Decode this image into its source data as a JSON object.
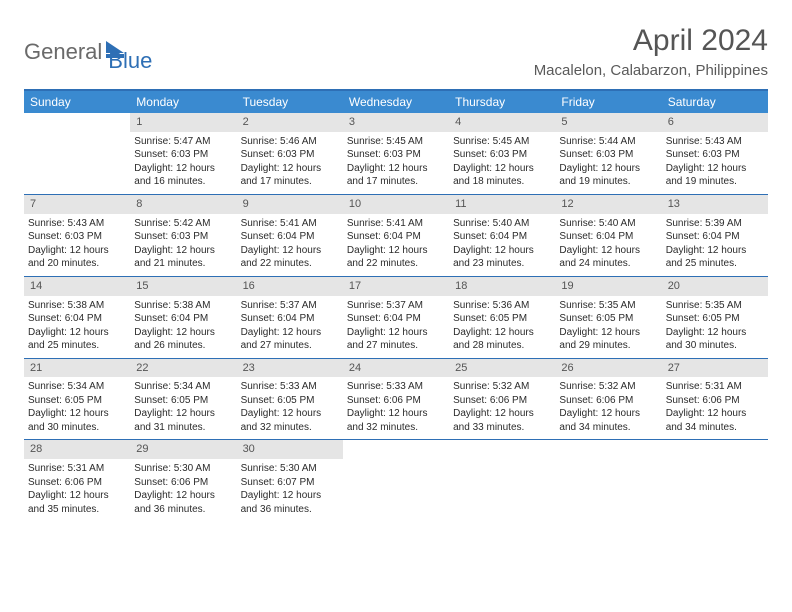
{
  "brand": {
    "part1": "General",
    "part2": "Blue"
  },
  "title": "April 2024",
  "location": "Macalelon, Calabarzon, Philippines",
  "colors": {
    "header_bg": "#3a8ad0",
    "border": "#2e6fb5",
    "daynum_bg": "#e5e5e5",
    "text": "#2b2b2b",
    "muted": "#555555"
  },
  "weekdays": [
    "Sunday",
    "Monday",
    "Tuesday",
    "Wednesday",
    "Thursday",
    "Friday",
    "Saturday"
  ],
  "weeks": [
    [
      {
        "n": "",
        "sunrise": "",
        "sunset": "",
        "daylight": ""
      },
      {
        "n": "1",
        "sunrise": "Sunrise: 5:47 AM",
        "sunset": "Sunset: 6:03 PM",
        "daylight": "Daylight: 12 hours and 16 minutes."
      },
      {
        "n": "2",
        "sunrise": "Sunrise: 5:46 AM",
        "sunset": "Sunset: 6:03 PM",
        "daylight": "Daylight: 12 hours and 17 minutes."
      },
      {
        "n": "3",
        "sunrise": "Sunrise: 5:45 AM",
        "sunset": "Sunset: 6:03 PM",
        "daylight": "Daylight: 12 hours and 17 minutes."
      },
      {
        "n": "4",
        "sunrise": "Sunrise: 5:45 AM",
        "sunset": "Sunset: 6:03 PM",
        "daylight": "Daylight: 12 hours and 18 minutes."
      },
      {
        "n": "5",
        "sunrise": "Sunrise: 5:44 AM",
        "sunset": "Sunset: 6:03 PM",
        "daylight": "Daylight: 12 hours and 19 minutes."
      },
      {
        "n": "6",
        "sunrise": "Sunrise: 5:43 AM",
        "sunset": "Sunset: 6:03 PM",
        "daylight": "Daylight: 12 hours and 19 minutes."
      }
    ],
    [
      {
        "n": "7",
        "sunrise": "Sunrise: 5:43 AM",
        "sunset": "Sunset: 6:03 PM",
        "daylight": "Daylight: 12 hours and 20 minutes."
      },
      {
        "n": "8",
        "sunrise": "Sunrise: 5:42 AM",
        "sunset": "Sunset: 6:03 PM",
        "daylight": "Daylight: 12 hours and 21 minutes."
      },
      {
        "n": "9",
        "sunrise": "Sunrise: 5:41 AM",
        "sunset": "Sunset: 6:04 PM",
        "daylight": "Daylight: 12 hours and 22 minutes."
      },
      {
        "n": "10",
        "sunrise": "Sunrise: 5:41 AM",
        "sunset": "Sunset: 6:04 PM",
        "daylight": "Daylight: 12 hours and 22 minutes."
      },
      {
        "n": "11",
        "sunrise": "Sunrise: 5:40 AM",
        "sunset": "Sunset: 6:04 PM",
        "daylight": "Daylight: 12 hours and 23 minutes."
      },
      {
        "n": "12",
        "sunrise": "Sunrise: 5:40 AM",
        "sunset": "Sunset: 6:04 PM",
        "daylight": "Daylight: 12 hours and 24 minutes."
      },
      {
        "n": "13",
        "sunrise": "Sunrise: 5:39 AM",
        "sunset": "Sunset: 6:04 PM",
        "daylight": "Daylight: 12 hours and 25 minutes."
      }
    ],
    [
      {
        "n": "14",
        "sunrise": "Sunrise: 5:38 AM",
        "sunset": "Sunset: 6:04 PM",
        "daylight": "Daylight: 12 hours and 25 minutes."
      },
      {
        "n": "15",
        "sunrise": "Sunrise: 5:38 AM",
        "sunset": "Sunset: 6:04 PM",
        "daylight": "Daylight: 12 hours and 26 minutes."
      },
      {
        "n": "16",
        "sunrise": "Sunrise: 5:37 AM",
        "sunset": "Sunset: 6:04 PM",
        "daylight": "Daylight: 12 hours and 27 minutes."
      },
      {
        "n": "17",
        "sunrise": "Sunrise: 5:37 AM",
        "sunset": "Sunset: 6:04 PM",
        "daylight": "Daylight: 12 hours and 27 minutes."
      },
      {
        "n": "18",
        "sunrise": "Sunrise: 5:36 AM",
        "sunset": "Sunset: 6:05 PM",
        "daylight": "Daylight: 12 hours and 28 minutes."
      },
      {
        "n": "19",
        "sunrise": "Sunrise: 5:35 AM",
        "sunset": "Sunset: 6:05 PM",
        "daylight": "Daylight: 12 hours and 29 minutes."
      },
      {
        "n": "20",
        "sunrise": "Sunrise: 5:35 AM",
        "sunset": "Sunset: 6:05 PM",
        "daylight": "Daylight: 12 hours and 30 minutes."
      }
    ],
    [
      {
        "n": "21",
        "sunrise": "Sunrise: 5:34 AM",
        "sunset": "Sunset: 6:05 PM",
        "daylight": "Daylight: 12 hours and 30 minutes."
      },
      {
        "n": "22",
        "sunrise": "Sunrise: 5:34 AM",
        "sunset": "Sunset: 6:05 PM",
        "daylight": "Daylight: 12 hours and 31 minutes."
      },
      {
        "n": "23",
        "sunrise": "Sunrise: 5:33 AM",
        "sunset": "Sunset: 6:05 PM",
        "daylight": "Daylight: 12 hours and 32 minutes."
      },
      {
        "n": "24",
        "sunrise": "Sunrise: 5:33 AM",
        "sunset": "Sunset: 6:06 PM",
        "daylight": "Daylight: 12 hours and 32 minutes."
      },
      {
        "n": "25",
        "sunrise": "Sunrise: 5:32 AM",
        "sunset": "Sunset: 6:06 PM",
        "daylight": "Daylight: 12 hours and 33 minutes."
      },
      {
        "n": "26",
        "sunrise": "Sunrise: 5:32 AM",
        "sunset": "Sunset: 6:06 PM",
        "daylight": "Daylight: 12 hours and 34 minutes."
      },
      {
        "n": "27",
        "sunrise": "Sunrise: 5:31 AM",
        "sunset": "Sunset: 6:06 PM",
        "daylight": "Daylight: 12 hours and 34 minutes."
      }
    ],
    [
      {
        "n": "28",
        "sunrise": "Sunrise: 5:31 AM",
        "sunset": "Sunset: 6:06 PM",
        "daylight": "Daylight: 12 hours and 35 minutes."
      },
      {
        "n": "29",
        "sunrise": "Sunrise: 5:30 AM",
        "sunset": "Sunset: 6:06 PM",
        "daylight": "Daylight: 12 hours and 36 minutes."
      },
      {
        "n": "30",
        "sunrise": "Sunrise: 5:30 AM",
        "sunset": "Sunset: 6:07 PM",
        "daylight": "Daylight: 12 hours and 36 minutes."
      },
      {
        "n": "",
        "sunrise": "",
        "sunset": "",
        "daylight": ""
      },
      {
        "n": "",
        "sunrise": "",
        "sunset": "",
        "daylight": ""
      },
      {
        "n": "",
        "sunrise": "",
        "sunset": "",
        "daylight": ""
      },
      {
        "n": "",
        "sunrise": "",
        "sunset": "",
        "daylight": ""
      }
    ]
  ]
}
